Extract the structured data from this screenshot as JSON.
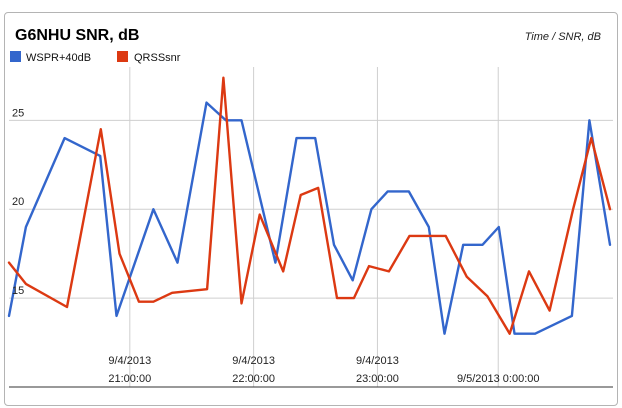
{
  "chart_data": {
    "type": "line",
    "title": "G6NHU SNR, dB",
    "subtitle": "Time / SNR, dB",
    "legend_position": "top-left",
    "grid": true,
    "xlabel": "",
    "ylabel": "",
    "xlim": [
      0,
      100
    ],
    "ylim": [
      10,
      28
    ],
    "y_ticks": [
      {
        "value": 25,
        "label": "25"
      },
      {
        "value": 20,
        "label": "20"
      },
      {
        "value": 15,
        "label": "15"
      }
    ],
    "x_ticks": [
      {
        "value": 20.0,
        "line1": "9/4/2013",
        "line2": "21:00:00"
      },
      {
        "value": 40.5,
        "line1": "9/4/2013",
        "line2": "22:00:00"
      },
      {
        "value": 61.0,
        "line1": "9/4/2013",
        "line2": "23:00:00"
      },
      {
        "value": 81.0,
        "line1": "",
        "line2": "9/5/2013 0:00:00"
      }
    ],
    "series": [
      {
        "name": "WSPR+40dB",
        "color": "#3366cc",
        "points": [
          [
            0,
            14
          ],
          [
            2.8,
            19
          ],
          [
            9.2,
            24
          ],
          [
            15.1,
            23
          ],
          [
            17.8,
            14
          ],
          [
            23.9,
            20
          ],
          [
            27.9,
            17
          ],
          [
            32.7,
            26
          ],
          [
            35.9,
            25
          ],
          [
            38.5,
            25
          ],
          [
            44.1,
            17
          ],
          [
            47.6,
            24
          ],
          [
            50.7,
            24
          ],
          [
            53.8,
            18
          ],
          [
            56.9,
            16
          ],
          [
            60.0,
            20
          ],
          [
            62.7,
            21
          ],
          [
            66.2,
            21
          ],
          [
            69.5,
            19
          ],
          [
            72.1,
            13
          ],
          [
            75.2,
            18
          ],
          [
            78.4,
            18
          ],
          [
            81.1,
            19
          ],
          [
            83.7,
            13
          ],
          [
            87.1,
            13
          ],
          [
            93.2,
            14
          ],
          [
            96.1,
            25
          ],
          [
            99.5,
            18
          ]
        ]
      },
      {
        "name": "QRSSsnr",
        "color": "#dc3912",
        "points": [
          [
            0,
            17
          ],
          [
            2.8,
            15.8
          ],
          [
            9.6,
            14.5
          ],
          [
            15.2,
            24.5
          ],
          [
            18.3,
            17.5
          ],
          [
            21.5,
            14.8
          ],
          [
            23.9,
            14.8
          ],
          [
            27.0,
            15.3
          ],
          [
            32.8,
            15.5
          ],
          [
            35.5,
            27.4
          ],
          [
            38.5,
            14.7
          ],
          [
            41.5,
            19.7
          ],
          [
            45.4,
            16.5
          ],
          [
            48.3,
            20.8
          ],
          [
            51.2,
            21.2
          ],
          [
            54.3,
            15.0
          ],
          [
            57.1,
            15.0
          ],
          [
            59.6,
            16.8
          ],
          [
            62.9,
            16.5
          ],
          [
            66.3,
            18.5
          ],
          [
            72.3,
            18.5
          ],
          [
            75.8,
            16.2
          ],
          [
            79.2,
            15.1
          ],
          [
            82.9,
            13.0
          ],
          [
            86.1,
            16.5
          ],
          [
            89.5,
            14.3
          ],
          [
            93.4,
            20.0
          ],
          [
            96.4,
            24.0
          ],
          [
            99.5,
            20.0
          ]
        ]
      }
    ]
  }
}
